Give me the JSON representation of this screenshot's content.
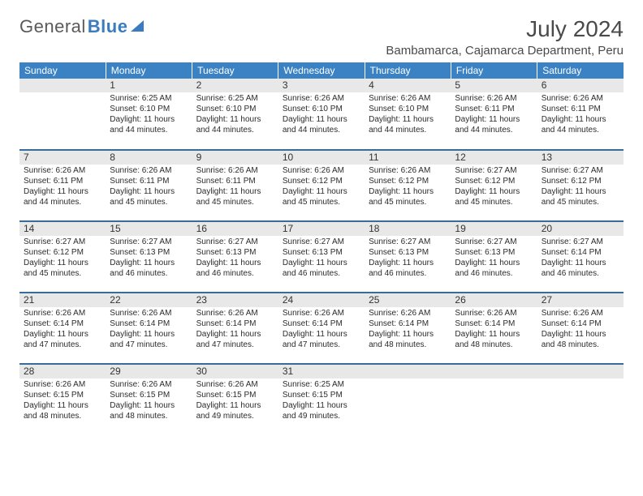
{
  "logo": {
    "part1": "General",
    "part2": "Blue"
  },
  "title": "July 2024",
  "location": "Bambamarca, Cajamarca Department, Peru",
  "weekdays": [
    "Sunday",
    "Monday",
    "Tuesday",
    "Wednesday",
    "Thursday",
    "Friday",
    "Saturday"
  ],
  "colors": {
    "header_bg": "#3b82c4",
    "header_text": "#ffffff",
    "border": "#3b6b9a",
    "daynum_bg": "#e8e8e8",
    "text": "#2b2b2b"
  },
  "start_weekday": 1,
  "days": [
    {
      "n": 1,
      "sunrise": "6:25 AM",
      "sunset": "6:10 PM",
      "daylight": "11 hours and 44 minutes."
    },
    {
      "n": 2,
      "sunrise": "6:25 AM",
      "sunset": "6:10 PM",
      "daylight": "11 hours and 44 minutes."
    },
    {
      "n": 3,
      "sunrise": "6:26 AM",
      "sunset": "6:10 PM",
      "daylight": "11 hours and 44 minutes."
    },
    {
      "n": 4,
      "sunrise": "6:26 AM",
      "sunset": "6:10 PM",
      "daylight": "11 hours and 44 minutes."
    },
    {
      "n": 5,
      "sunrise": "6:26 AM",
      "sunset": "6:11 PM",
      "daylight": "11 hours and 44 minutes."
    },
    {
      "n": 6,
      "sunrise": "6:26 AM",
      "sunset": "6:11 PM",
      "daylight": "11 hours and 44 minutes."
    },
    {
      "n": 7,
      "sunrise": "6:26 AM",
      "sunset": "6:11 PM",
      "daylight": "11 hours and 44 minutes."
    },
    {
      "n": 8,
      "sunrise": "6:26 AM",
      "sunset": "6:11 PM",
      "daylight": "11 hours and 45 minutes."
    },
    {
      "n": 9,
      "sunrise": "6:26 AM",
      "sunset": "6:11 PM",
      "daylight": "11 hours and 45 minutes."
    },
    {
      "n": 10,
      "sunrise": "6:26 AM",
      "sunset": "6:12 PM",
      "daylight": "11 hours and 45 minutes."
    },
    {
      "n": 11,
      "sunrise": "6:26 AM",
      "sunset": "6:12 PM",
      "daylight": "11 hours and 45 minutes."
    },
    {
      "n": 12,
      "sunrise": "6:27 AM",
      "sunset": "6:12 PM",
      "daylight": "11 hours and 45 minutes."
    },
    {
      "n": 13,
      "sunrise": "6:27 AM",
      "sunset": "6:12 PM",
      "daylight": "11 hours and 45 minutes."
    },
    {
      "n": 14,
      "sunrise": "6:27 AM",
      "sunset": "6:12 PM",
      "daylight": "11 hours and 45 minutes."
    },
    {
      "n": 15,
      "sunrise": "6:27 AM",
      "sunset": "6:13 PM",
      "daylight": "11 hours and 46 minutes."
    },
    {
      "n": 16,
      "sunrise": "6:27 AM",
      "sunset": "6:13 PM",
      "daylight": "11 hours and 46 minutes."
    },
    {
      "n": 17,
      "sunrise": "6:27 AM",
      "sunset": "6:13 PM",
      "daylight": "11 hours and 46 minutes."
    },
    {
      "n": 18,
      "sunrise": "6:27 AM",
      "sunset": "6:13 PM",
      "daylight": "11 hours and 46 minutes."
    },
    {
      "n": 19,
      "sunrise": "6:27 AM",
      "sunset": "6:13 PM",
      "daylight": "11 hours and 46 minutes."
    },
    {
      "n": 20,
      "sunrise": "6:27 AM",
      "sunset": "6:14 PM",
      "daylight": "11 hours and 46 minutes."
    },
    {
      "n": 21,
      "sunrise": "6:26 AM",
      "sunset": "6:14 PM",
      "daylight": "11 hours and 47 minutes."
    },
    {
      "n": 22,
      "sunrise": "6:26 AM",
      "sunset": "6:14 PM",
      "daylight": "11 hours and 47 minutes."
    },
    {
      "n": 23,
      "sunrise": "6:26 AM",
      "sunset": "6:14 PM",
      "daylight": "11 hours and 47 minutes."
    },
    {
      "n": 24,
      "sunrise": "6:26 AM",
      "sunset": "6:14 PM",
      "daylight": "11 hours and 47 minutes."
    },
    {
      "n": 25,
      "sunrise": "6:26 AM",
      "sunset": "6:14 PM",
      "daylight": "11 hours and 48 minutes."
    },
    {
      "n": 26,
      "sunrise": "6:26 AM",
      "sunset": "6:14 PM",
      "daylight": "11 hours and 48 minutes."
    },
    {
      "n": 27,
      "sunrise": "6:26 AM",
      "sunset": "6:14 PM",
      "daylight": "11 hours and 48 minutes."
    },
    {
      "n": 28,
      "sunrise": "6:26 AM",
      "sunset": "6:15 PM",
      "daylight": "11 hours and 48 minutes."
    },
    {
      "n": 29,
      "sunrise": "6:26 AM",
      "sunset": "6:15 PM",
      "daylight": "11 hours and 48 minutes."
    },
    {
      "n": 30,
      "sunrise": "6:26 AM",
      "sunset": "6:15 PM",
      "daylight": "11 hours and 49 minutes."
    },
    {
      "n": 31,
      "sunrise": "6:25 AM",
      "sunset": "6:15 PM",
      "daylight": "11 hours and 49 minutes."
    }
  ],
  "labels": {
    "sunrise": "Sunrise:",
    "sunset": "Sunset:",
    "daylight": "Daylight:"
  }
}
